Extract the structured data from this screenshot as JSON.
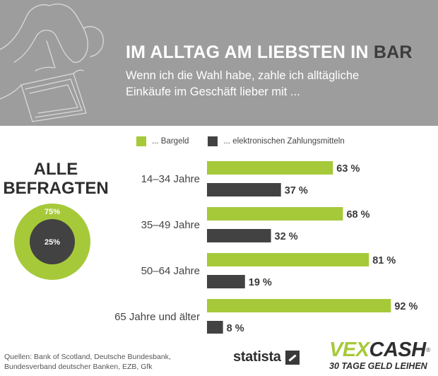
{
  "header": {
    "title_main": "IM ALLTAG AM LIEBSTEN IN ",
    "title_accent": "BAR",
    "subtitle_line1": "Wenn ich die Wahl habe, zahle ich alltägliche",
    "subtitle_line2": "Einkäufe im Geschäft lieber mit ..."
  },
  "legend": {
    "cash": "... Bargeld",
    "electronic": "... elektronischen Zahlungsmitteln"
  },
  "all_respondents": {
    "line1": "ALLE",
    "line2": "BEFRAGTEN",
    "cash_label": "75%",
    "electronic_label": "25%"
  },
  "colors": {
    "header_bg": "#9c9d9c",
    "cash": "#a6c93a",
    "electronic": "#424242",
    "text_dark": "#2e2e2e"
  },
  "chart_data": [
    {
      "type": "bar",
      "orientation": "horizontal",
      "categories": [
        "14–34 Jahre",
        "35–49 Jahre",
        "50–64 Jahre",
        "65 Jahre und älter"
      ],
      "series": [
        {
          "name": "... Bargeld",
          "values": [
            63,
            68,
            81,
            92
          ],
          "labels": [
            "63 %",
            "68 %",
            "81 %",
            "92 %"
          ],
          "color": "#a6c93a"
        },
        {
          "name": "... elektronischen Zahlungsmitteln",
          "values": [
            37,
            32,
            19,
            8
          ],
          "labels": [
            "37 %",
            "32 %",
            "19 %",
            "8 %"
          ],
          "color": "#424242"
        }
      ],
      "xlim": [
        0,
        100
      ],
      "grid": false,
      "legend": "top"
    },
    {
      "type": "pie",
      "variant": "donut",
      "categories": [
        "... Bargeld",
        "... elektronischen Zahlungsmitteln"
      ],
      "values": [
        75,
        25
      ],
      "labels": [
        "75%",
        "25%"
      ],
      "colors": [
        "#a6c93a",
        "#424242"
      ]
    }
  ],
  "footer": {
    "sources_line1": "Quellen: Bank of Scotland, Deutsche Bundesbank,",
    "sources_line2": "Bundesverband deutscher Banken, EZB, Gfk",
    "statista": "statista",
    "vexcash_part1": "VEX",
    "vexcash_part2": "CASH",
    "vexcash_reg": "®",
    "vexcash_tagline": "30 TAGE GELD LEIHEN"
  }
}
